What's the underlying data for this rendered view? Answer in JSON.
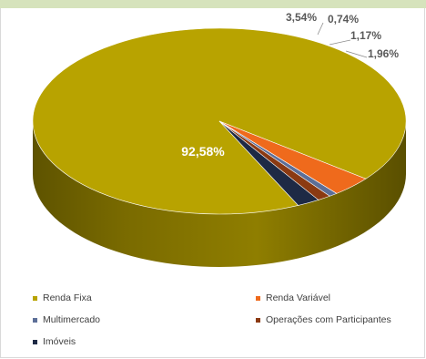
{
  "header": {
    "title": ""
  },
  "chart_data": {
    "type": "pie",
    "style": "3d",
    "title": "",
    "slices": [
      {
        "name": "Renda Fixa",
        "value": 92.58,
        "label": "92,58%",
        "color": "#b8a300"
      },
      {
        "name": "Renda Variável",
        "value": 3.54,
        "label": "3,54%",
        "color": "#ef6a1c"
      },
      {
        "name": "Multimercado",
        "value": 0.74,
        "label": "0,74%",
        "color": "#5d6f98"
      },
      {
        "name": "Operações com Participantes",
        "value": 1.17,
        "label": "1,17%",
        "color": "#8b3a12"
      },
      {
        "name": "Imóveis",
        "value": 1.96,
        "label": "1,96%",
        "color": "#1e2a45"
      }
    ],
    "legend": {
      "position": "bottom",
      "entries": [
        "Renda Fixa",
        "Renda Variável",
        "Multimercado",
        "Operações com Participantes",
        "Imóveis"
      ]
    }
  }
}
